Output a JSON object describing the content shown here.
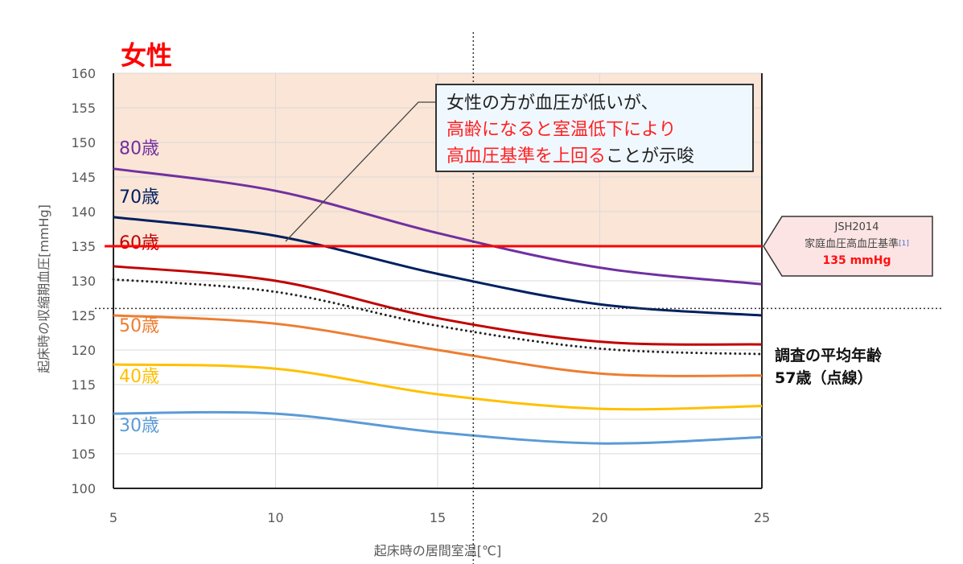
{
  "title": "女性",
  "callout": {
    "line1": "女性の方が血圧が低いが、",
    "line2": "高齢になると室温低下により",
    "line3_red": "高血圧基準を上回る",
    "line3_rest": "ことが示唆"
  },
  "reference": {
    "line1": "JSH2014",
    "line2": "家庭血圧高血圧基準",
    "sup": "[1]",
    "value_label": "135 mmHg",
    "value": 135,
    "color": "#ff0000"
  },
  "average_note": {
    "line1": "調査の平均年齢",
    "line2": "57歳（点線）"
  },
  "chart_data": {
    "type": "line",
    "xlabel": "起床時の居間室温[℃]",
    "ylabel": "起床時の収縮期血圧[mmHg]",
    "xlim": [
      5,
      25
    ],
    "ylim": [
      100,
      160
    ],
    "xticks": [
      "5",
      "10",
      "15",
      "20",
      "25"
    ],
    "yticks": [
      "100",
      "105",
      "110",
      "115",
      "120",
      "125",
      "130",
      "135",
      "140",
      "145",
      "150",
      "155",
      "160"
    ],
    "grid": true,
    "shaded_region_above": 135,
    "shade_color": "#fbe5d6",
    "crosshair": {
      "x": 16.1,
      "y": 126
    },
    "x": [
      5,
      10,
      15,
      20,
      25
    ],
    "series": [
      {
        "name": "80歳",
        "values": [
          146.2,
          143.0,
          136.9,
          131.9,
          129.5
        ],
        "color": "#7030a0",
        "style": "solid"
      },
      {
        "name": "70歳",
        "values": [
          139.2,
          136.5,
          131.0,
          126.6,
          125.0
        ],
        "color": "#002060",
        "style": "solid"
      },
      {
        "name": "60歳",
        "values": [
          132.1,
          130.0,
          124.6,
          121.2,
          120.8
        ],
        "color": "#c00000",
        "style": "solid"
      },
      {
        "name": "57歳",
        "values": [
          130.2,
          128.4,
          123.5,
          120.2,
          119.4
        ],
        "color": "#222222",
        "style": "dotted"
      },
      {
        "name": "50歳",
        "values": [
          125.0,
          123.8,
          120.0,
          116.6,
          116.3
        ],
        "color": "#ed7d31",
        "style": "solid"
      },
      {
        "name": "40歳",
        "values": [
          117.9,
          117.3,
          113.6,
          111.5,
          111.9
        ],
        "color": "#ffc000",
        "style": "solid"
      },
      {
        "name": "30歳",
        "values": [
          110.8,
          110.8,
          108.1,
          106.5,
          107.4
        ],
        "color": "#5b9bd5",
        "style": "solid"
      }
    ]
  }
}
